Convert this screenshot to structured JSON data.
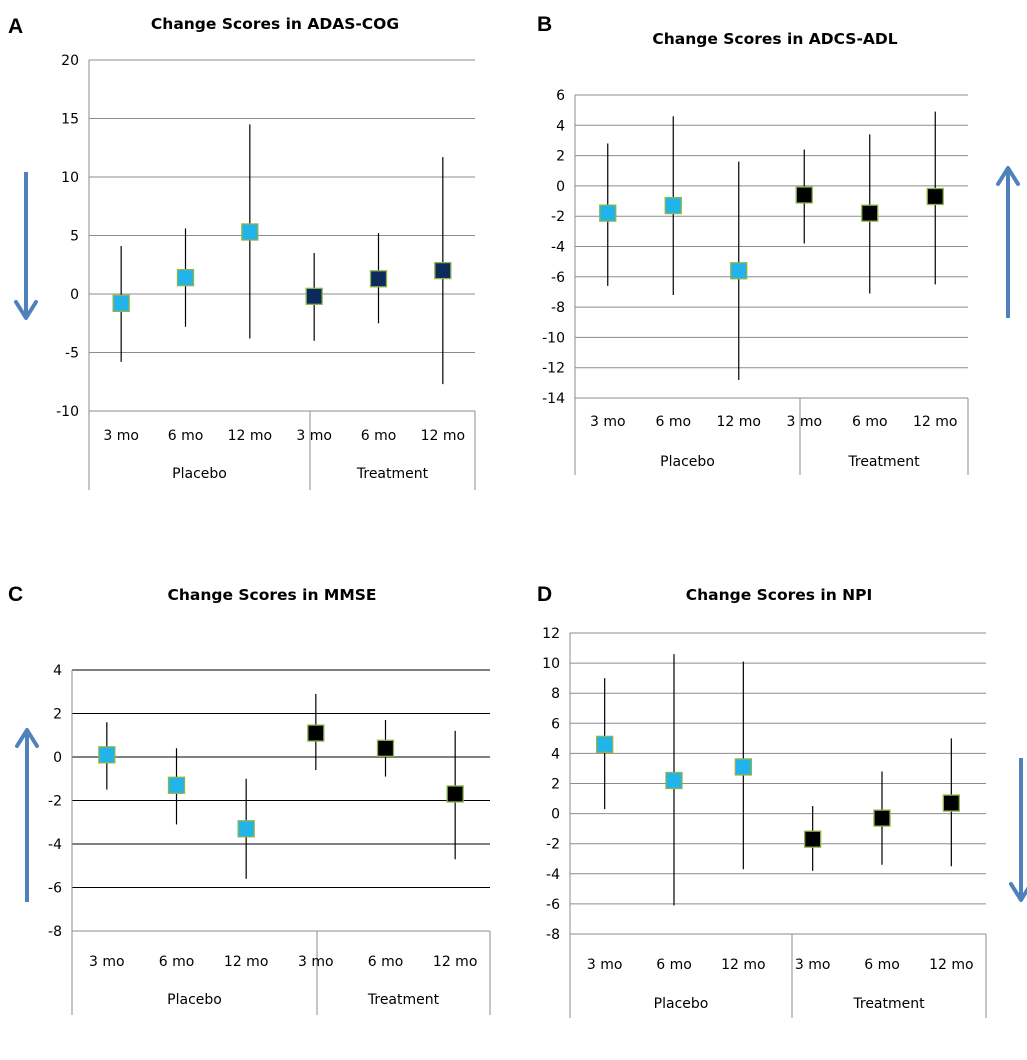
{
  "chart_data": [
    {
      "panel_label": "A",
      "type": "scatter",
      "title": "Change Scores in ADAS-COG",
      "categories": [
        "3 mo",
        "6 mo",
        "12 mo",
        "3 mo",
        "6 mo",
        "12 mo"
      ],
      "groups": [
        "Placebo",
        "Treatment"
      ],
      "ylim": [
        -10,
        20
      ],
      "yticks": [
        -10,
        -5,
        0,
        5,
        10,
        15,
        20
      ],
      "grid": true,
      "values": [
        -0.8,
        1.4,
        5.3,
        -0.2,
        1.3,
        2.0
      ],
      "err_low": [
        -5.8,
        -2.8,
        -3.8,
        -4.0,
        -2.5,
        -7.7
      ],
      "err_high": [
        4.1,
        5.6,
        14.5,
        3.5,
        5.2,
        11.7
      ],
      "colors": [
        "#22b3ea",
        "#22b3ea",
        "#22b3ea",
        "#0d2a5c",
        "#0d2a5c",
        "#0d2a5c"
      ],
      "arrow": "down",
      "arrow_color": "#4f81bd"
    },
    {
      "panel_label": "B",
      "type": "scatter",
      "title": "Change Scores in ADCS-ADL",
      "categories": [
        "3 mo",
        "6 mo",
        "12 mo",
        "3 mo",
        "6 mo",
        "12 mo"
      ],
      "groups": [
        "Placebo",
        "Treatment"
      ],
      "ylim": [
        -14,
        6
      ],
      "yticks": [
        -14,
        -12,
        -10,
        -8,
        -6,
        -4,
        -2,
        0,
        2,
        4,
        6
      ],
      "grid": true,
      "values": [
        -1.8,
        -1.3,
        -5.6,
        -0.6,
        -1.8,
        -0.7
      ],
      "err_low": [
        -6.6,
        -7.2,
        -12.8,
        -3.8,
        -7.1,
        -6.5
      ],
      "err_high": [
        2.8,
        4.6,
        1.6,
        2.4,
        3.4,
        4.9
      ],
      "colors": [
        "#22b3ea",
        "#22b3ea",
        "#22b3ea",
        "#000000",
        "#000000",
        "#000000"
      ],
      "arrow": "up",
      "arrow_color": "#4f81bd"
    },
    {
      "panel_label": "C",
      "type": "scatter",
      "title": "Change Scores in MMSE",
      "categories": [
        "3 mo",
        "6 mo",
        "12 mo",
        "3 mo",
        "6 mo",
        "12 mo"
      ],
      "groups": [
        "Placebo",
        "Treatment"
      ],
      "ylim": [
        -8,
        4
      ],
      "yticks": [
        -8,
        -6,
        -4,
        -2,
        0,
        2,
        4
      ],
      "grid": true,
      "values": [
        0.1,
        -1.3,
        -3.3,
        1.1,
        0.4,
        -1.7
      ],
      "err_low": [
        -1.5,
        -3.1,
        -5.6,
        -0.6,
        -0.9,
        -4.7
      ],
      "err_high": [
        1.6,
        0.4,
        -1.0,
        2.9,
        1.7,
        1.2
      ],
      "colors": [
        "#22b3ea",
        "#22b3ea",
        "#22b3ea",
        "#000000",
        "#000000",
        "#000000"
      ],
      "arrow": "up",
      "arrow_color": "#4f81bd"
    },
    {
      "panel_label": "D",
      "type": "scatter",
      "title": "Change Scores in NPI",
      "categories": [
        "3 mo",
        "6 mo",
        "12 mo",
        "3 mo",
        "6 mo",
        "12 mo"
      ],
      "groups": [
        "Placebo",
        "Treatment"
      ],
      "ylim": [
        -8,
        12
      ],
      "yticks": [
        -8,
        -6,
        -4,
        -2,
        0,
        2,
        4,
        6,
        8,
        10,
        12
      ],
      "grid": true,
      "values": [
        4.6,
        2.2,
        3.1,
        -1.7,
        -0.3,
        0.7
      ],
      "err_low": [
        0.3,
        -6.1,
        -3.7,
        -3.8,
        -3.4,
        -3.5
      ],
      "err_high": [
        9.0,
        10.6,
        10.1,
        0.5,
        2.8,
        5.0
      ],
      "colors": [
        "#22b3ea",
        "#22b3ea",
        "#22b3ea",
        "#000000",
        "#000000",
        "#000000"
      ],
      "arrow": "down",
      "arrow_color": "#4f81bd"
    }
  ]
}
